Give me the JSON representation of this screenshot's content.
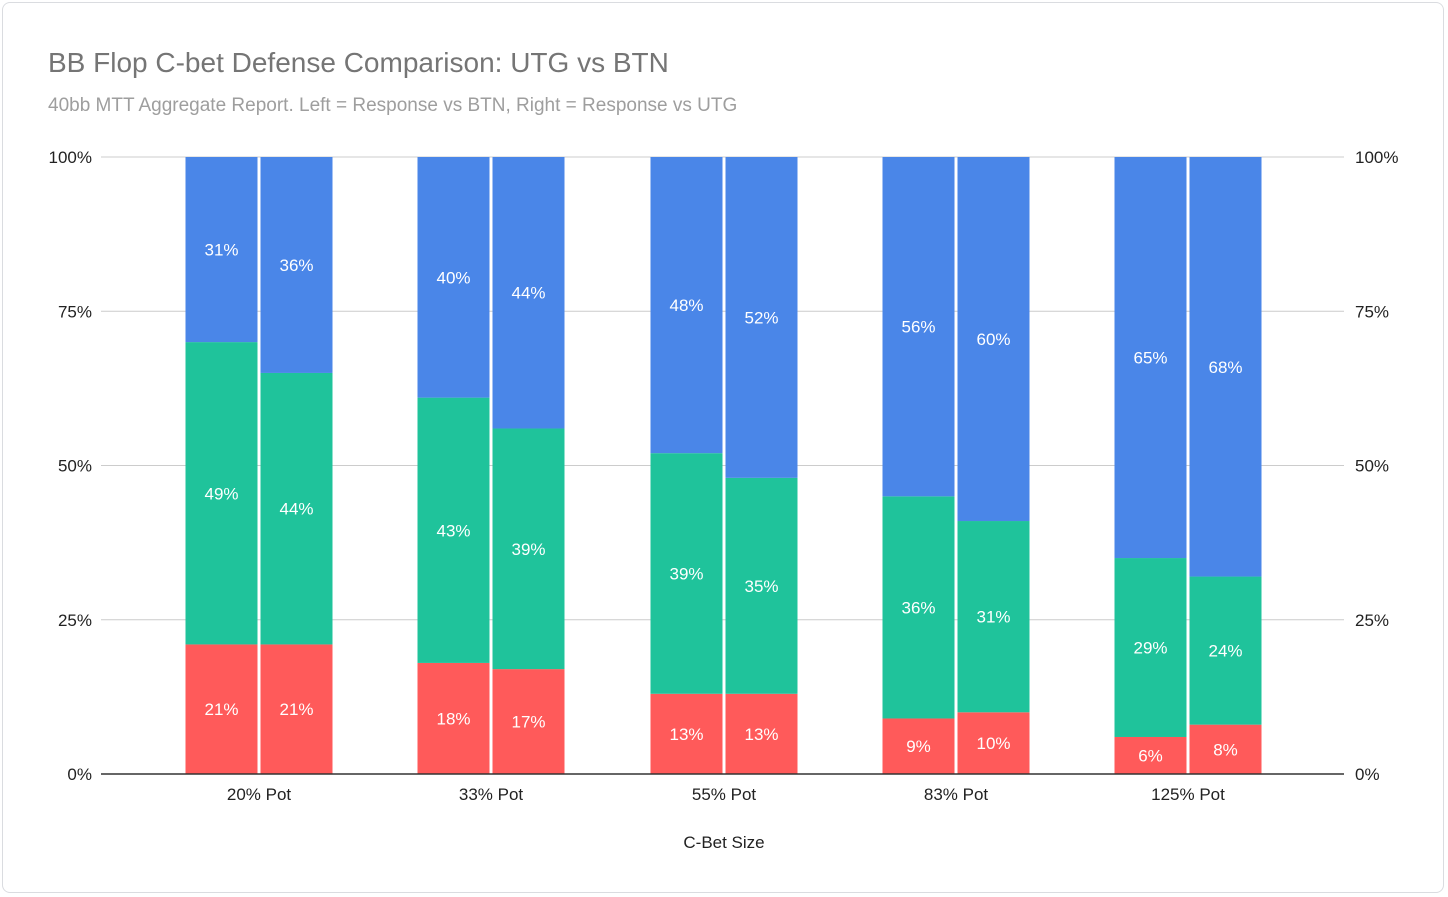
{
  "title": "BB Flop C-bet Defense Comparison: UTG vs BTN",
  "subtitle": "40bb MTT Aggregate Report. Left = Response vs BTN, Right = Response vs UTG",
  "chart_data": {
    "type": "bar",
    "stacked": true,
    "categories": [
      "20% Pot",
      "33% Pot",
      "55% Pot",
      "83% Pot",
      "125% Pot"
    ],
    "xlabel": "C-Bet Size",
    "ylabel": "",
    "ylim": [
      0,
      100
    ],
    "y_ticks": [
      "0%",
      "25%",
      "50%",
      "75%",
      "100%"
    ],
    "y_ticks_right": [
      "0%",
      "25%",
      "50%",
      "75%",
      "100%"
    ],
    "grid": true,
    "legend": "none",
    "bar_groups": [
      {
        "position": "left",
        "segments": [
          {
            "values": [
              21,
              18,
              13,
              9,
              6
            ],
            "labels": [
              "21%",
              "18%",
              "13%",
              "9%",
              "6%"
            ],
            "color": "#ff5a5a"
          },
          {
            "values": [
              49,
              43,
              39,
              36,
              29
            ],
            "labels": [
              "49%",
              "43%",
              "39%",
              "36%",
              "29%"
            ],
            "color": "#1fc39b"
          },
          {
            "values": [
              31,
              40,
              48,
              56,
              65
            ],
            "labels": [
              "31%",
              "40%",
              "48%",
              "56%",
              "65%"
            ],
            "color": "#4a86e8"
          }
        ]
      },
      {
        "position": "right",
        "segments": [
          {
            "values": [
              21,
              17,
              13,
              10,
              8
            ],
            "labels": [
              "21%",
              "17%",
              "13%",
              "10%",
              "8%"
            ],
            "color": "#ff5a5a"
          },
          {
            "values": [
              44,
              39,
              35,
              31,
              24
            ],
            "labels": [
              "44%",
              "39%",
              "35%",
              "31%",
              "24%"
            ],
            "color": "#1fc39b"
          },
          {
            "values": [
              36,
              44,
              52,
              60,
              68
            ],
            "labels": [
              "36%",
              "44%",
              "52%",
              "60%",
              "68%"
            ],
            "color": "#4a86e8"
          }
        ]
      }
    ]
  }
}
